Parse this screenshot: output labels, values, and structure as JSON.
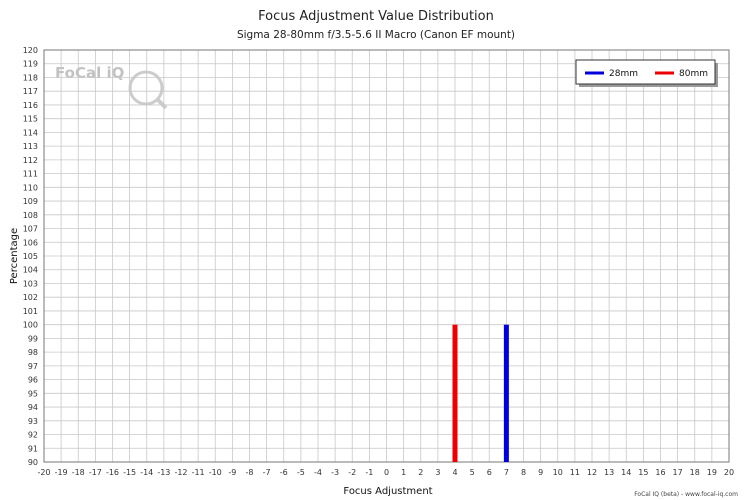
{
  "chart_data": {
    "type": "bar",
    "title": "Focus Adjustment Value Distribution",
    "subtitle": "Sigma 28-80mm f/3.5-5.6 II Macro (Canon EF mount)",
    "xlabel": "Focus Adjustment",
    "ylabel": "Percentage",
    "xlim": [
      -20,
      20
    ],
    "ylim": [
      90,
      120
    ],
    "xticks": [
      -20,
      -19,
      -18,
      -17,
      -16,
      -15,
      -14,
      -13,
      -12,
      -11,
      -10,
      -9,
      -8,
      -7,
      -6,
      -5,
      -4,
      -3,
      -2,
      -1,
      0,
      1,
      2,
      3,
      4,
      5,
      6,
      7,
      8,
      9,
      10,
      11,
      12,
      13,
      14,
      15,
      16,
      17,
      18,
      19,
      20
    ],
    "yticks": [
      90,
      91,
      92,
      93,
      94,
      95,
      96,
      97,
      98,
      99,
      100,
      101,
      102,
      103,
      104,
      105,
      106,
      107,
      108,
      109,
      110,
      111,
      112,
      113,
      114,
      115,
      116,
      117,
      118,
      119,
      120
    ],
    "grid": true,
    "legend_position": "top-right",
    "series": [
      {
        "name": "28mm",
        "color": "#0000dd",
        "x": [
          7
        ],
        "values": [
          100
        ]
      },
      {
        "name": "80mm",
        "color": "#ee0000",
        "x": [
          4
        ],
        "values": [
          100
        ]
      }
    ]
  },
  "watermark": {
    "logo_text": "FoCal iQ"
  },
  "footer": {
    "credit": "FoCal IQ (beta) - www.focal-iq.com"
  }
}
